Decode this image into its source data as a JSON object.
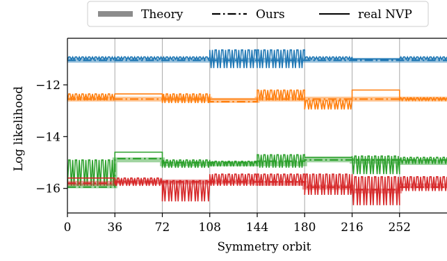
{
  "chart_data": {
    "type": "line",
    "title": "",
    "xlabel": "Symmetry orbit",
    "ylabel": "Log likelihood",
    "xlim": [
      0,
      288
    ],
    "ylim": [
      -16.95,
      -10.2
    ],
    "xticks": [
      0,
      36,
      72,
      108,
      144,
      180,
      216,
      252
    ],
    "xtick_labels": [
      "0",
      "36",
      "72",
      "108",
      "144",
      "180",
      "216",
      "252"
    ],
    "yticks": [
      -12,
      -14,
      -16
    ],
    "ytick_labels": [
      "−12",
      "−14",
      "−16"
    ],
    "grid": "vertical",
    "legend": {
      "placement": "top-center",
      "entries": [
        {
          "label": "Theory",
          "style": "thick-gray"
        },
        {
          "label": "Ours",
          "style": "dashdot"
        },
        {
          "label": "real NVP",
          "style": "solid"
        }
      ]
    },
    "segment_boundaries": [
      0,
      36,
      72,
      108,
      144,
      180,
      216,
      252,
      288
    ],
    "colors": [
      "#1f77b4",
      "#ff7f0e",
      "#2ca02c",
      "#d62728"
    ],
    "series": [
      {
        "color": "#1f77b4",
        "theory": [
          -11.05,
          -11.05,
          -11.05,
          -11.05,
          -11.05,
          -11.05,
          -11.05,
          -11.05
        ],
        "ours": [
          -11.05,
          -11.05,
          -11.05,
          -11.05,
          -11.05,
          -11.05,
          -11.05,
          -11.05
        ],
        "nvp": [
          -10.92,
          -10.92,
          -10.92,
          -10.65,
          -10.65,
          -10.92,
          -11.0,
          -10.92
        ],
        "nvp_low": [
          -11.02,
          -11.02,
          -11.02,
          -11.35,
          -11.35,
          -11.02,
          -11.05,
          -11.02
        ],
        "nvp_noisy": [
          1,
          1,
          1,
          1,
          1,
          1,
          0,
          1
        ]
      },
      {
        "color": "#ff7f0e",
        "theory": [
          -12.55,
          -12.55,
          -12.55,
          -12.6,
          -12.55,
          -12.55,
          -12.55,
          -12.55
        ],
        "ours": [
          -12.55,
          -12.55,
          -12.55,
          -12.65,
          -12.55,
          -12.55,
          -12.55,
          -12.55
        ],
        "nvp": [
          -12.35,
          -12.35,
          -12.35,
          -12.55,
          -12.2,
          -12.6,
          -12.2,
          -12.5
        ],
        "nvp_low": [
          -12.6,
          -12.4,
          -12.7,
          -12.7,
          -12.6,
          -12.95,
          -12.25,
          -12.6
        ],
        "nvp_noisy": [
          1,
          0,
          1,
          0,
          1,
          1,
          0,
          1
        ]
      },
      {
        "color": "#2ca02c",
        "theory": [
          -15.9,
          -14.9,
          -15.05,
          -15.05,
          -15.05,
          -14.9,
          -14.95,
          -15.0
        ],
        "ours": [
          -15.95,
          -14.85,
          -15.0,
          -15.0,
          -14.95,
          -14.9,
          -14.9,
          -14.9
        ],
        "nvp": [
          -14.9,
          -14.6,
          -14.9,
          -14.95,
          -14.7,
          -14.8,
          -14.75,
          -14.8
        ],
        "nvp_low": [
          -15.9,
          -14.65,
          -15.2,
          -15.15,
          -15.2,
          -14.9,
          -15.45,
          -15.05
        ],
        "nvp_noisy": [
          1,
          0,
          1,
          1,
          1,
          0,
          1,
          1
        ]
      },
      {
        "color": "#d62728",
        "theory": [
          -15.8,
          -15.75,
          -15.75,
          -15.75,
          -15.8,
          -15.95,
          -16.1,
          -15.9
        ],
        "ours": [
          -15.8,
          -15.75,
          -15.75,
          -15.75,
          -15.75,
          -15.95,
          -16.05,
          -15.95
        ],
        "nvp": [
          -15.6,
          -15.6,
          -15.7,
          -15.45,
          -15.45,
          -15.45,
          -15.55,
          -15.55
        ],
        "nvp_low": [
          -15.9,
          -15.9,
          -16.5,
          -15.9,
          -15.9,
          -16.25,
          -16.65,
          -16.1
        ],
        "nvp_noisy": [
          0,
          1,
          1,
          1,
          1,
          1,
          1,
          1
        ]
      }
    ]
  }
}
